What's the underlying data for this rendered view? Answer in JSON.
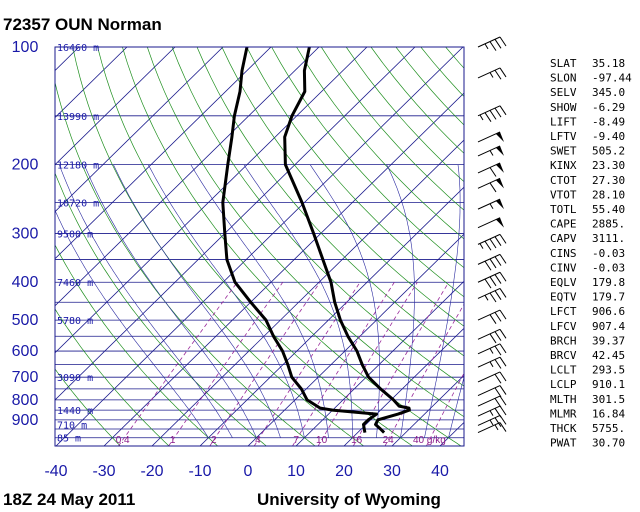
{
  "header": {
    "title": "72357 OUN Norman",
    "time": "18Z 24 May 2011",
    "source": "University of Wyoming"
  },
  "chart_data": {
    "type": "line",
    "title": "72357 OUN Norman",
    "pressure_axis_labels": [
      100,
      200,
      300,
      400,
      500,
      600,
      700,
      800,
      900
    ],
    "temperature_axis_labels": [
      -40,
      -30,
      -20,
      -10,
      0,
      10,
      20,
      30,
      40
    ],
    "temperature_range": [
      -40,
      45
    ],
    "height_labels": [
      {
        "p": 100,
        "label": "16460 m"
      },
      {
        "p": 150,
        "label": "13990 m"
      },
      {
        "p": 200,
        "label": "12180 m"
      },
      {
        "p": 250,
        "label": "10720 m"
      },
      {
        "p": 300,
        "label": "9500 m"
      },
      {
        "p": 400,
        "label": "7460 m"
      },
      {
        "p": 500,
        "label": "5780 m"
      },
      {
        "p": 700,
        "label": "3090 m"
      },
      {
        "p": 850,
        "label": "1440 m"
      },
      {
        "p": 925,
        "label": "710 m"
      },
      {
        "p": 1000,
        "label": "85 m"
      }
    ],
    "mixing_ratio_labels": [
      "0.4",
      "1",
      "2",
      "4",
      "7",
      "10",
      "16",
      "24",
      "40 g/kg"
    ],
    "series": [
      {
        "name": "temperature",
        "points": [
          {
            "p": 970,
            "t": 25.5
          },
          {
            "p": 950,
            "t": 24.0
          },
          {
            "p": 925,
            "t": 22.0
          },
          {
            "p": 900,
            "t": 21.5
          },
          {
            "p": 870,
            "t": 24.5
          },
          {
            "p": 850,
            "t": 26.0
          },
          {
            "p": 840,
            "t": 25.5
          },
          {
            "p": 830,
            "t": 23.0
          },
          {
            "p": 800,
            "t": 20.5
          },
          {
            "p": 750,
            "t": 15.5
          },
          {
            "p": 700,
            "t": 10.5
          },
          {
            "p": 650,
            "t": 6.5
          },
          {
            "p": 600,
            "t": 2.5
          },
          {
            "p": 550,
            "t": -2.5
          },
          {
            "p": 500,
            "t": -7.5
          },
          {
            "p": 450,
            "t": -12.5
          },
          {
            "p": 400,
            "t": -17.5
          },
          {
            "p": 350,
            "t": -24.0
          },
          {
            "p": 300,
            "t": -31.5
          },
          {
            "p": 250,
            "t": -40.5
          },
          {
            "p": 200,
            "t": -52.0
          },
          {
            "p": 170,
            "t": -58.0
          },
          {
            "p": 150,
            "t": -61.0
          },
          {
            "p": 130,
            "t": -63.5
          },
          {
            "p": 115,
            "t": -68.0
          },
          {
            "p": 100,
            "t": -72.0
          }
        ]
      },
      {
        "name": "dewpoint",
        "points": [
          {
            "p": 970,
            "t": 21.5
          },
          {
            "p": 925,
            "t": 19.5
          },
          {
            "p": 900,
            "t": 19.5
          },
          {
            "p": 870,
            "t": 20.0
          },
          {
            "p": 850,
            "t": 10.0
          },
          {
            "p": 840,
            "t": 7.0
          },
          {
            "p": 800,
            "t": 2.5
          },
          {
            "p": 750,
            "t": -1.0
          },
          {
            "p": 700,
            "t": -5.5
          },
          {
            "p": 650,
            "t": -9.0
          },
          {
            "p": 600,
            "t": -13.0
          },
          {
            "p": 550,
            "t": -18.0
          },
          {
            "p": 500,
            "t": -23.0
          },
          {
            "p": 450,
            "t": -30.0
          },
          {
            "p": 400,
            "t": -37.5
          },
          {
            "p": 350,
            "t": -44.0
          },
          {
            "p": 300,
            "t": -50.0
          },
          {
            "p": 250,
            "t": -57.0
          },
          {
            "p": 200,
            "t": -64.0
          },
          {
            "p": 170,
            "t": -69.0
          },
          {
            "p": 150,
            "t": -73.0
          },
          {
            "p": 130,
            "t": -77.0
          },
          {
            "p": 115,
            "t": -81.0
          },
          {
            "p": 100,
            "t": -85.0
          }
        ]
      }
    ],
    "wind_barbs": [
      {
        "p": 100,
        "speed": 35
      },
      {
        "p": 120,
        "speed": 25
      },
      {
        "p": 150,
        "speed": 45
      },
      {
        "p": 175,
        "speed": 50
      },
      {
        "p": 190,
        "speed": 55
      },
      {
        "p": 210,
        "speed": 60
      },
      {
        "p": 230,
        "speed": 60
      },
      {
        "p": 260,
        "speed": 55
      },
      {
        "p": 290,
        "speed": 50
      },
      {
        "p": 320,
        "speed": 45
      },
      {
        "p": 360,
        "speed": 40
      },
      {
        "p": 400,
        "speed": 40
      },
      {
        "p": 440,
        "speed": 35
      },
      {
        "p": 500,
        "speed": 30
      },
      {
        "p": 560,
        "speed": 30
      },
      {
        "p": 610,
        "speed": 25
      },
      {
        "p": 660,
        "speed": 25
      },
      {
        "p": 720,
        "speed": 20
      },
      {
        "p": 780,
        "speed": 20
      },
      {
        "p": 830,
        "speed": 20
      },
      {
        "p": 880,
        "speed": 25
      },
      {
        "p": 930,
        "speed": 25
      },
      {
        "p": 970,
        "speed": 15
      }
    ],
    "indices": [
      {
        "name": "SLAT",
        "value": "35.18"
      },
      {
        "name": "SLON",
        "value": "-97.44"
      },
      {
        "name": "SELV",
        "value": "345.0"
      },
      {
        "name": "SHOW",
        "value": "-6.29"
      },
      {
        "name": "LIFT",
        "value": "-8.49"
      },
      {
        "name": "LFTV",
        "value": "-9.40"
      },
      {
        "name": "SWET",
        "value": "505.2"
      },
      {
        "name": "KINX",
        "value": "23.30"
      },
      {
        "name": "CTOT",
        "value": "27.30"
      },
      {
        "name": "VTOT",
        "value": "28.10"
      },
      {
        "name": "TOTL",
        "value": "55.40"
      },
      {
        "name": "CAPE",
        "value": "2885."
      },
      {
        "name": "CAPV",
        "value": "3111."
      },
      {
        "name": "CINS",
        "value": "-0.03"
      },
      {
        "name": "CINV",
        "value": "-0.03"
      },
      {
        "name": "EQLV",
        "value": "179.8"
      },
      {
        "name": "EQTV",
        "value": "179.7"
      },
      {
        "name": "LFCT",
        "value": "906.6"
      },
      {
        "name": "LFCV",
        "value": "907.4"
      },
      {
        "name": "BRCH",
        "value": "39.37"
      },
      {
        "name": "BRCV",
        "value": "42.45"
      },
      {
        "name": "LCLT",
        "value": "293.5"
      },
      {
        "name": "LCLP",
        "value": "910.1"
      },
      {
        "name": "MLTH",
        "value": "301.5"
      },
      {
        "name": "MLMR",
        "value": "16.84"
      },
      {
        "name": "THCK",
        "value": "5755."
      },
      {
        "name": "PWAT",
        "value": "30.70"
      }
    ],
    "colors": {
      "isobar": "#1a1a8c",
      "isotherm": "#1a1a8c",
      "dry_adiabat": "#1f8f1f",
      "moist_adiabat": "#2a2aa0",
      "mixing_ratio": "#9a2a9a",
      "sounding": "#000000"
    }
  }
}
